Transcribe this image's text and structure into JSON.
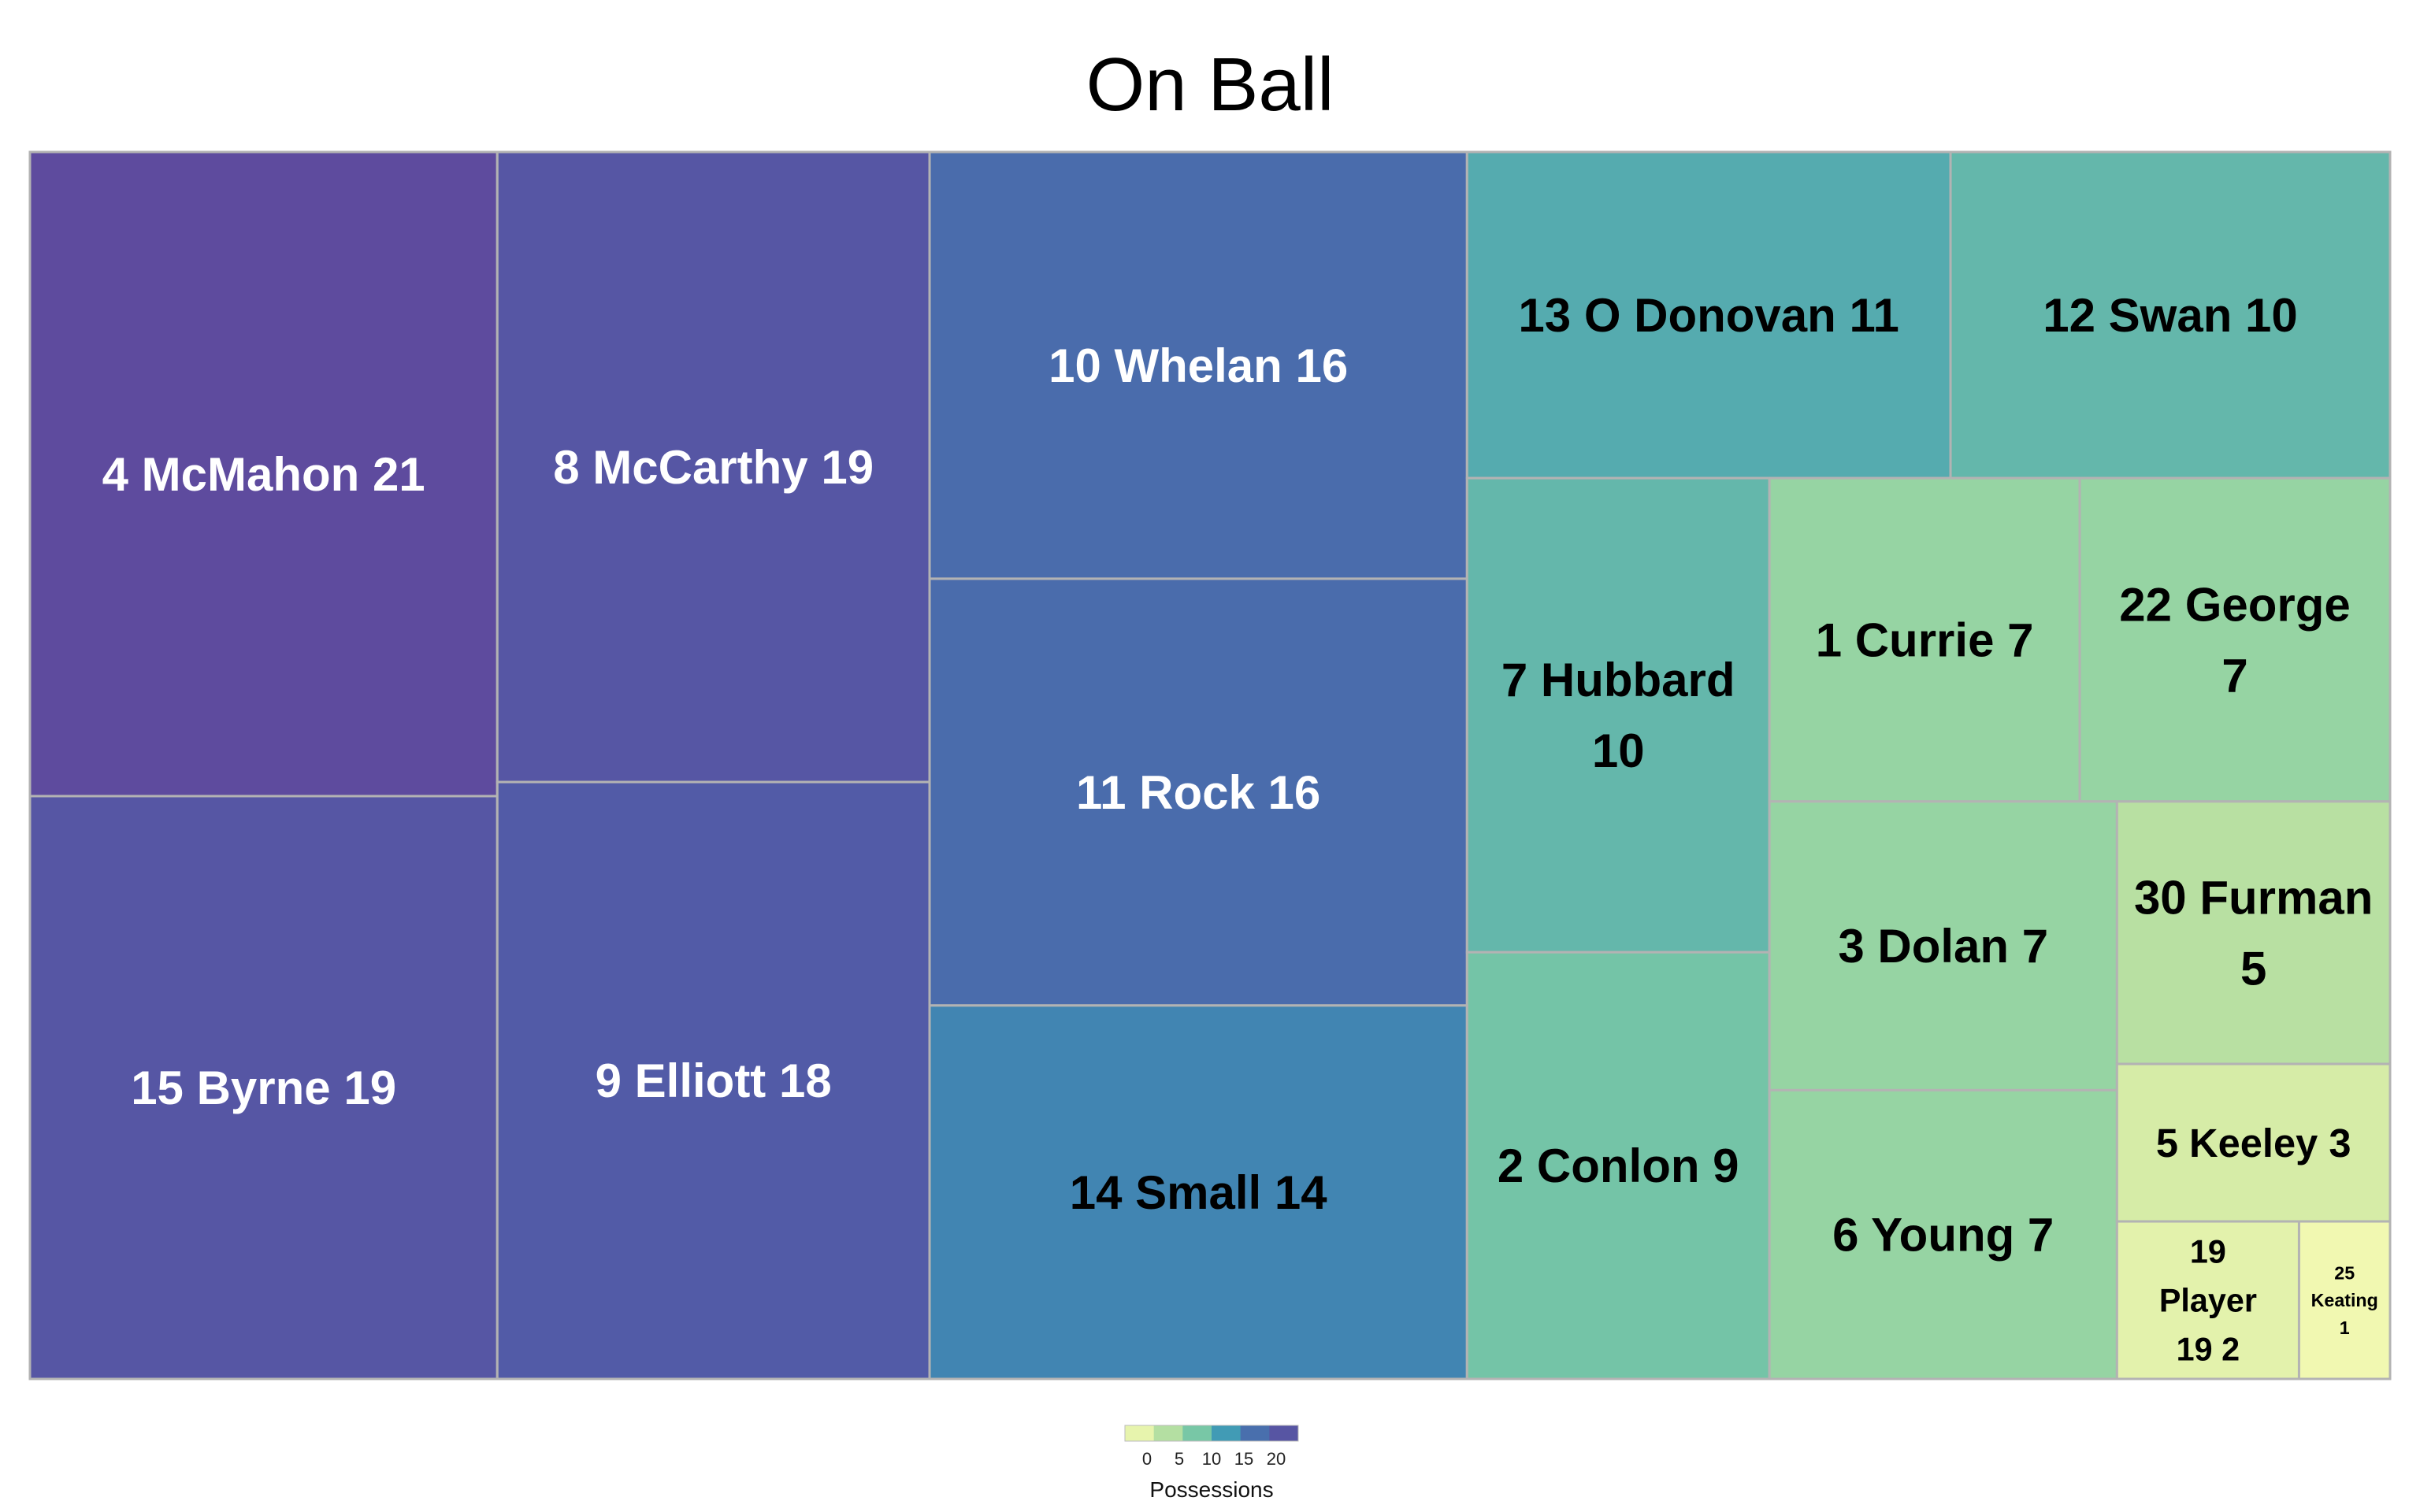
{
  "chart_data": {
    "type": "treemap",
    "title": "On Ball",
    "metric": "Possessions",
    "items": [
      {
        "label": "4 McMahon 21",
        "value": 21
      },
      {
        "label": "15 Byrne 19",
        "value": 19
      },
      {
        "label": "8 McCarthy 19",
        "value": 19
      },
      {
        "label": "9 Elliott 18",
        "value": 18
      },
      {
        "label": "10 Whelan 16",
        "value": 16
      },
      {
        "label": "11 Rock 16",
        "value": 16
      },
      {
        "label": "14 Small 14",
        "value": 14
      },
      {
        "label": "13 O Donovan 11",
        "value": 11
      },
      {
        "label": "12 Swan 10",
        "value": 10
      },
      {
        "label": "7 Hubbard 10",
        "value": 10
      },
      {
        "label": "2 Conlon 9",
        "value": 9
      },
      {
        "label": "1 Currie 7",
        "value": 7
      },
      {
        "label": "22 George 7",
        "value": 7
      },
      {
        "label": "3 Dolan 7",
        "value": 7
      },
      {
        "label": "6 Young 7",
        "value": 7
      },
      {
        "label": "30 Furman 5",
        "value": 5
      },
      {
        "label": "5 Keeley 3",
        "value": 3
      },
      {
        "label": "19 Player 19 2",
        "value": 2
      },
      {
        "label": "25 Keating 1",
        "value": 1
      }
    ],
    "legend": {
      "title": "Possessions",
      "ticks": [
        "0",
        "5",
        "10",
        "15",
        "20"
      ],
      "range": [
        0,
        21
      ]
    },
    "colors": {
      "scale": [
        "#fefeb6",
        "#c6e5a1",
        "#7ecba4",
        "#3b97b6",
        "#4d62aa",
        "#5e4b9e"
      ],
      "border": "#b3b3b3"
    }
  }
}
